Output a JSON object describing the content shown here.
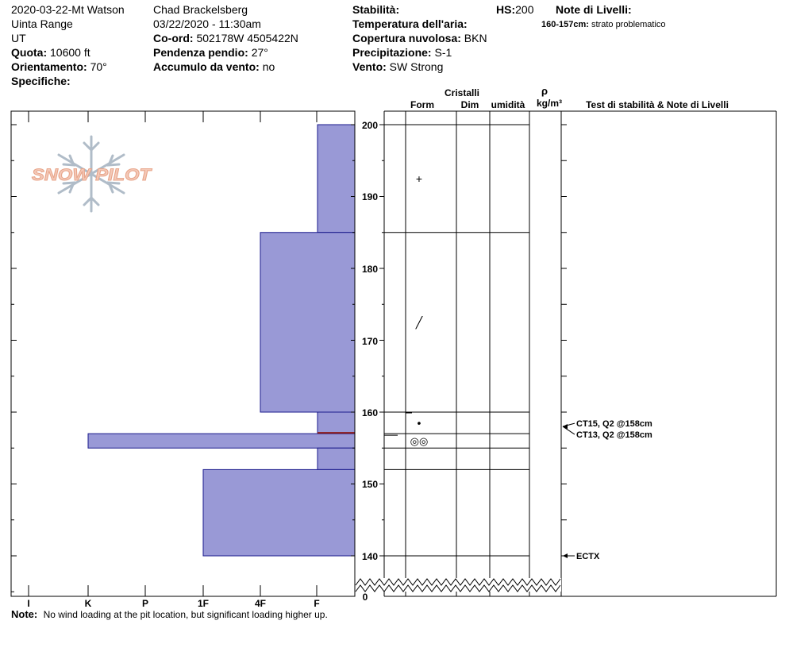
{
  "header": {
    "pit_name": "2020-03-22-Mt Watson",
    "range": "Uinta Range",
    "state": "UT",
    "elevation": {
      "label": "Quota:",
      "value": "10600 ft"
    },
    "aspect": {
      "label": "Orientamento:",
      "value": "70°"
    },
    "specifics": {
      "label": "Specifiche:",
      "value": ""
    },
    "observer": "Chad Brackelsberg",
    "datetime": "03/22/2020 - 11:30am",
    "coords": {
      "label": "Co-ord:",
      "value": "502178W 4505422N"
    },
    "slope": {
      "label": "Pendenza pendio:",
      "value": "27°"
    },
    "wind_loading": {
      "label": "Accumulo da vento:",
      "value": "no"
    },
    "stability": {
      "label": "Stabilità:",
      "value": ""
    },
    "air_temp": {
      "label": "Temperatura dell'aria:",
      "value": ""
    },
    "sky": {
      "label": "Copertura nuvolosa:",
      "value": "BKN"
    },
    "precip": {
      "label": "Precipitazione:",
      "value": "S-1"
    },
    "wind": {
      "label": "Vento:",
      "value": "SW Strong"
    },
    "hs": {
      "label": "HS:",
      "value": "200"
    },
    "layer_notes": {
      "label": "Note di Livelli:",
      "range": "160-157cm:",
      "text": "strato problematico"
    }
  },
  "column_headers": {
    "crystals": "Cristalli",
    "form": "Form",
    "size": "Dim",
    "moisture": "umidità",
    "density_symbol": "ρ",
    "density_unit": "kg/m³",
    "tests": "Test di stabilità & Note di Livelli"
  },
  "hardness_labels": [
    "I",
    "K",
    "P",
    "1F",
    "4F",
    "F"
  ],
  "depth_ticks": [
    "200",
    "190",
    "180",
    "170",
    "160",
    "150",
    "140",
    "0"
  ],
  "logo_text": "SNOW PILOT",
  "note": {
    "label": "Note:",
    "text": "No wind loading at the pit location, but significant loading higher up."
  },
  "colors": {
    "layer_fill": "#9999d6",
    "layer_stroke": "#1a1a8c",
    "weak_layer": "#8b1a1a",
    "logo": "#e8a58a",
    "snowflake": "#b0bcc8"
  },
  "chart_data": {
    "type": "snow-profile",
    "hs_cm": 200,
    "hardness_scale": [
      "F",
      "4F",
      "1F",
      "P",
      "K",
      "I"
    ],
    "layers": [
      {
        "top": 200,
        "bottom": 185,
        "hardness": "F"
      },
      {
        "top": 185,
        "bottom": 160,
        "hardness": "4F"
      },
      {
        "top": 160,
        "bottom": 157,
        "hardness": "F"
      },
      {
        "top": 157,
        "bottom": 155,
        "hardness": "K"
      },
      {
        "top": 155,
        "bottom": 152,
        "hardness": "F"
      },
      {
        "top": 152,
        "bottom": 140,
        "hardness": "1F"
      }
    ],
    "boundaries": [
      200,
      185,
      160,
      157,
      155,
      152,
      140
    ],
    "weak_layer_cm": 157,
    "grain_forms": [
      {
        "depth": 192.5,
        "symbol": "+"
      },
      {
        "depth": 172.5,
        "symbol": "╱"
      },
      {
        "depth": 158.5,
        "symbol": "•"
      },
      {
        "depth": 156,
        "symbol": "◎◎"
      }
    ],
    "tests": [
      {
        "depth": 158,
        "text": "CT15, Q2 @158cm"
      },
      {
        "depth": 158,
        "text": "CT13, Q2 @158cm"
      },
      {
        "depth": 140,
        "text": "ECTX"
      }
    ]
  }
}
